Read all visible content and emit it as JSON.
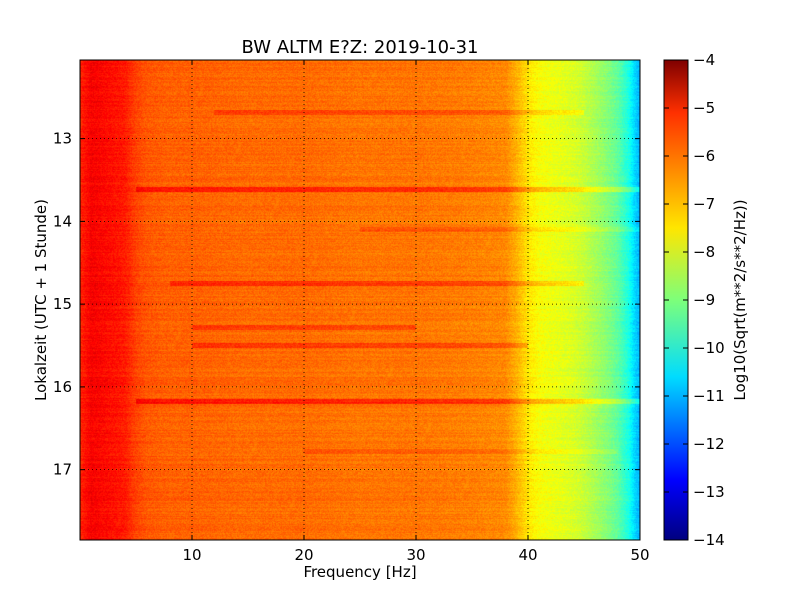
{
  "chart_data": {
    "type": "heatmap",
    "title": "BW ALTM E?Z: 2019-10-31",
    "xlabel": "Frequency [Hz]",
    "ylabel": "Lokalzeit (UTC + 1 Stunde)",
    "xlim": [
      0,
      50
    ],
    "ylim": [
      17.85,
      12.05
    ],
    "y_inverted": true,
    "x_ticks": [
      10,
      20,
      30,
      40,
      50
    ],
    "y_ticks": [
      13,
      14,
      15,
      16,
      17
    ],
    "grid": true,
    "colorbar": {
      "label": "Log10(Sqrt(m**2/s**2/Hz))",
      "range": [
        -14,
        -4
      ],
      "ticks": [
        -4,
        -5,
        -6,
        -7,
        -8,
        -9,
        -10,
        -11,
        -12,
        -13,
        -14
      ],
      "colormap": "jet"
    },
    "frequency_profile": {
      "x": [
        0,
        1,
        2,
        3,
        4,
        5,
        6,
        8,
        10,
        15,
        20,
        25,
        30,
        35,
        38,
        39,
        40,
        41,
        42,
        43,
        44,
        45,
        46,
        47,
        48,
        49,
        49.5,
        50
      ],
      "values": [
        -5.6,
        -5.2,
        -5.3,
        -5.4,
        -5.5,
        -5.9,
        -6.1,
        -6.2,
        -6.2,
        -6.3,
        -6.3,
        -6.4,
        -6.4,
        -6.5,
        -6.6,
        -7.0,
        -7.5,
        -7.8,
        -7.9,
        -8.0,
        -8.1,
        -8.3,
        -8.6,
        -8.9,
        -9.3,
        -10.0,
        -10.6,
        -11.0
      ]
    },
    "horizontal_bands": [
      {
        "time": 12.68,
        "value_offset": 0.45,
        "x_range": [
          12,
          45
        ]
      },
      {
        "time": 13.62,
        "value_offset": 0.7,
        "x_range": [
          5,
          50
        ]
      },
      {
        "time": 14.1,
        "value_offset": 0.35,
        "x_range": [
          25,
          50
        ]
      },
      {
        "time": 14.75,
        "value_offset": 0.55,
        "x_range": [
          8,
          45
        ]
      },
      {
        "time": 15.28,
        "value_offset": 0.5,
        "x_range": [
          10,
          30
        ]
      },
      {
        "time": 15.5,
        "value_offset": 0.55,
        "x_range": [
          10,
          40
        ]
      },
      {
        "time": 16.18,
        "value_offset": 0.8,
        "x_range": [
          5,
          50
        ]
      },
      {
        "time": 16.78,
        "value_offset": 0.3,
        "x_range": [
          20,
          48
        ]
      }
    ]
  }
}
